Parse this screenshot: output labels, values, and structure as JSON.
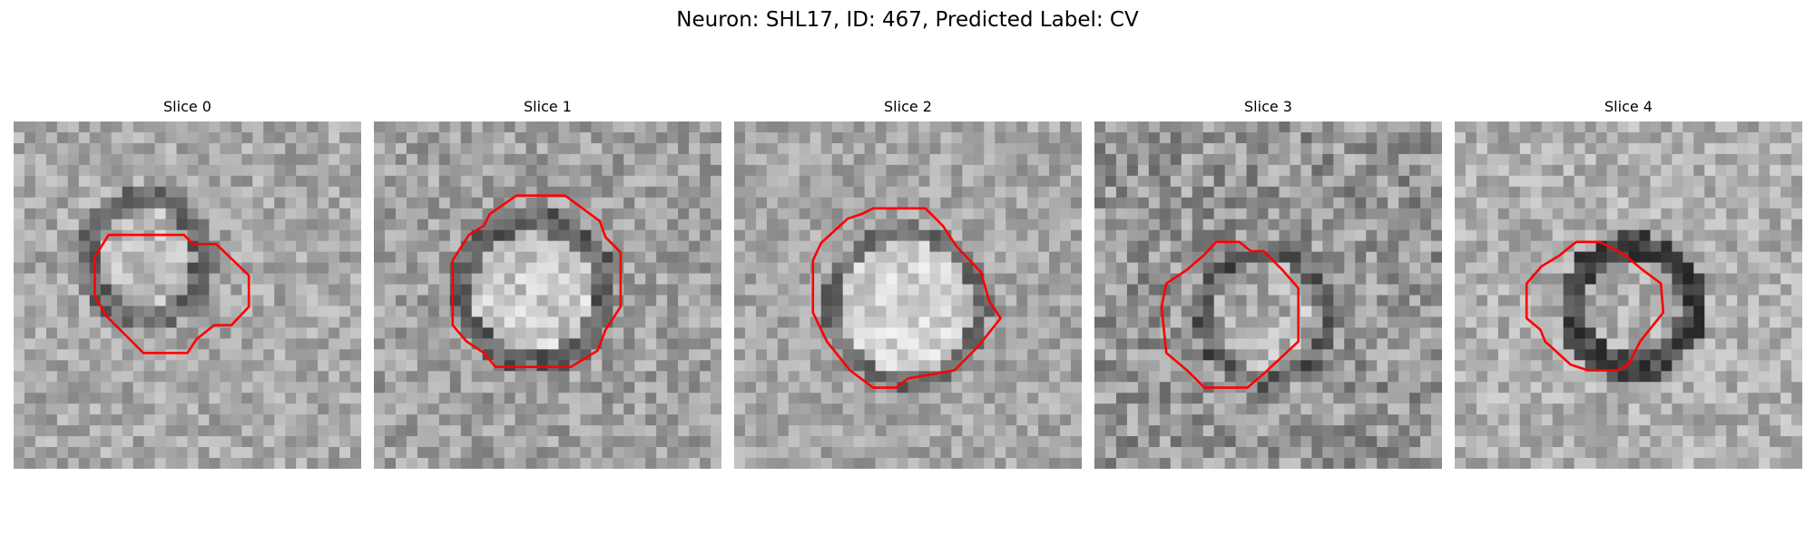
{
  "figure": {
    "title": "Neuron: SHL17, ID: 467, Predicted Label: CV",
    "outline_color": "#ff0000"
  },
  "panels": [
    {
      "title": "Slice 0"
    },
    {
      "title": "Slice 1"
    },
    {
      "title": "Slice 2"
    },
    {
      "title": "Slice 3"
    },
    {
      "title": "Slice 4"
    }
  ]
}
